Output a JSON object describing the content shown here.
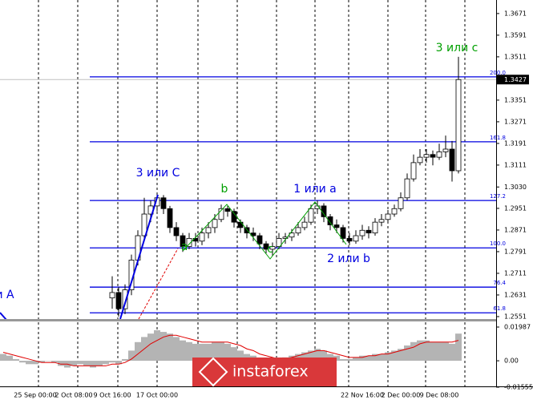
{
  "chart_data": {
    "type": "candlestick",
    "categories": [
      null,
      null,
      null,
      null,
      null,
      "25 Sep 00:00",
      null,
      null,
      null,
      null,
      null,
      "2 Oct 08:00",
      null,
      null,
      null,
      null,
      null,
      "9 Oct 16:00",
      null,
      null,
      null,
      null,
      null,
      null,
      "17 Oct 00:00",
      null,
      null,
      null,
      null,
      null,
      null,
      null,
      null,
      null,
      null,
      null,
      null,
      null,
      null,
      null,
      null,
      null,
      null,
      null,
      null,
      null,
      null,
      null,
      null,
      null,
      null,
      null,
      null,
      null,
      null,
      null,
      "22 Nov 16:00",
      null,
      null,
      null,
      null,
      null,
      "2 Dec 00:00",
      null,
      null,
      null,
      null,
      null,
      "9 Dec 08:00",
      null,
      null,
      null
    ],
    "open": [
      null,
      null,
      null,
      null,
      null,
      null,
      null,
      null,
      null,
      null,
      null,
      null,
      null,
      null,
      null,
      null,
      null,
      1.262,
      1.264,
      1.258,
      1.265,
      1.276,
      1.285,
      1.293,
      1.296,
      1.299,
      1.295,
      1.288,
      1.285,
      1.281,
      1.284,
      1.283,
      1.286,
      1.288,
      1.291,
      1.295,
      1.294,
      1.29,
      1.288,
      1.286,
      1.285,
      1.282,
      1.28,
      1.281,
      1.284,
      1.2845,
      1.286,
      1.288,
      1.29,
      1.295,
      1.296,
      1.292,
      1.289,
      1.288,
      1.284,
      1.283,
      1.285,
      1.287,
      1.286,
      1.29,
      1.291,
      1.293,
      1.295,
      1.299,
      1.306,
      1.312,
      1.314,
      1.315,
      1.314,
      1.316,
      1.317,
      1.309
    ],
    "high": [
      null,
      null,
      null,
      null,
      null,
      null,
      null,
      null,
      null,
      null,
      null,
      null,
      null,
      null,
      null,
      null,
      null,
      1.27,
      1.266,
      1.267,
      1.278,
      1.287,
      1.299,
      1.298,
      1.301,
      1.3,
      1.296,
      1.29,
      1.286,
      1.286,
      1.286,
      1.288,
      1.29,
      1.293,
      1.2965,
      1.296,
      1.295,
      1.291,
      1.289,
      1.288,
      1.286,
      1.283,
      1.2825,
      1.286,
      1.286,
      1.2875,
      1.29,
      1.292,
      1.2965,
      1.298,
      1.297,
      1.293,
      1.291,
      1.289,
      1.286,
      1.287,
      1.289,
      1.2885,
      1.2915,
      1.293,
      1.2945,
      1.2965,
      1.301,
      1.308,
      1.315,
      1.317,
      1.317,
      1.3165,
      1.319,
      1.322,
      1.32,
      1.3511
    ],
    "low": [
      null,
      null,
      null,
      null,
      null,
      null,
      null,
      null,
      null,
      null,
      null,
      null,
      null,
      null,
      null,
      null,
      null,
      1.258,
      1.2551,
      1.256,
      1.263,
      1.274,
      1.283,
      1.29,
      1.294,
      1.293,
      1.286,
      1.283,
      1.279,
      1.28,
      1.281,
      1.2815,
      1.284,
      1.286,
      1.29,
      1.292,
      1.288,
      1.286,
      1.284,
      1.283,
      1.28,
      1.2785,
      1.2775,
      1.28,
      1.282,
      1.283,
      1.285,
      1.287,
      1.289,
      1.293,
      1.29,
      1.287,
      1.286,
      1.2825,
      1.2815,
      1.282,
      1.2835,
      1.284,
      1.285,
      1.2885,
      1.2895,
      1.292,
      1.294,
      1.298,
      1.305,
      1.311,
      1.312,
      1.311,
      1.313,
      1.314,
      1.305,
      1.308
    ],
    "close": [
      null,
      null,
      null,
      null,
      null,
      null,
      null,
      null,
      null,
      null,
      null,
      null,
      null,
      null,
      null,
      null,
      null,
      1.264,
      1.258,
      1.265,
      1.276,
      1.285,
      1.293,
      1.296,
      1.299,
      1.295,
      1.288,
      1.285,
      1.281,
      1.284,
      1.283,
      1.286,
      1.288,
      1.291,
      1.295,
      1.294,
      1.29,
      1.288,
      1.286,
      1.285,
      1.282,
      1.28,
      1.281,
      1.284,
      1.2845,
      1.286,
      1.288,
      1.29,
      1.295,
      1.296,
      1.292,
      1.289,
      1.288,
      1.284,
      1.283,
      1.285,
      1.287,
      1.286,
      1.29,
      1.291,
      1.293,
      1.295,
      1.299,
      1.306,
      1.312,
      1.314,
      1.315,
      1.314,
      1.316,
      1.317,
      1.309,
      1.3427
    ],
    "ylim": [
      1.2545,
      1.3721
    ],
    "yticks": [
      1.3671,
      1.3591,
      1.3511,
      1.3351,
      1.3271,
      1.3191,
      1.3111,
      {
        "value": 1.303,
        "label": "1.3030"
      },
      1.2951,
      1.2871,
      1.2791,
      1.2711,
      1.2631,
      1.2551
    ],
    "bid": 1.3427,
    "levels": [
      {
        "label": "200.0",
        "price": 1.3437
      },
      {
        "label": "161.8",
        "price": 1.3197
      },
      {
        "label": "127.2",
        "price": 1.298
      },
      {
        "label": "100.0",
        "price": 1.2805
      },
      {
        "label": "76.4",
        "price": 1.266
      },
      {
        "label": "61.8",
        "price": 1.2565
      }
    ],
    "annotations": [
      "3 или с",
      "3 или C",
      "b",
      "1 или a",
      "a",
      "c",
      "2 или b",
      "и A"
    ],
    "indicator": {
      "histogram": [
        0.004,
        0.003,
        0.001,
        -0.001,
        -0.002,
        -0.002,
        -0.001,
        0.0,
        -0.001,
        -0.003,
        -0.004,
        -0.003,
        -0.002,
        -0.003,
        -0.004,
        -0.003,
        -0.002,
        -0.001,
        -0.002,
        0.001,
        0.006,
        0.011,
        0.014,
        0.016,
        0.018,
        0.017,
        0.016,
        0.014,
        0.012,
        0.011,
        0.01,
        0.01,
        0.01,
        0.011,
        0.011,
        0.01,
        0.008,
        0.006,
        0.004,
        0.003,
        0.001,
        0.0,
        0.0,
        0.001,
        0.002,
        0.003,
        0.004,
        0.005,
        0.006,
        0.007,
        0.006,
        0.004,
        0.003,
        0.001,
        0.001,
        0.002,
        0.003,
        0.003,
        0.004,
        0.004,
        0.005,
        0.006,
        0.007,
        0.009,
        0.011,
        0.012,
        0.012,
        0.011,
        0.011,
        0.011,
        0.01,
        0.016
      ],
      "histogram_color": "#b4b4b4",
      "signal": [
        0.005,
        0.004,
        0.003,
        0.002,
        0.001,
        0.0,
        -0.001,
        -0.001,
        -0.001,
        -0.002,
        -0.002,
        -0.003,
        -0.003,
        -0.003,
        -0.003,
        -0.003,
        -0.003,
        -0.002,
        -0.002,
        -0.001,
        0.001,
        0.004,
        0.007,
        0.01,
        0.012,
        0.014,
        0.015,
        0.015,
        0.014,
        0.013,
        0.012,
        0.011,
        0.011,
        0.011,
        0.011,
        0.011,
        0.01,
        0.009,
        0.007,
        0.006,
        0.004,
        0.003,
        0.002,
        0.001,
        0.001,
        0.002,
        0.003,
        0.004,
        0.005,
        0.006,
        0.006,
        0.005,
        0.004,
        0.003,
        0.002,
        0.002,
        0.002,
        0.003,
        0.003,
        0.004,
        0.004,
        0.005,
        0.006,
        0.007,
        0.008,
        0.01,
        0.011,
        0.011,
        0.011,
        0.011,
        0.011,
        0.012
      ],
      "signal_color": "#e00000",
      "y2lim": [
        -0.01555,
        0.0227
      ],
      "y2ticks": [
        0.01987,
        {
          "value": 0,
          "label": "0.00"
        },
        -0.01555
      ]
    },
    "watermark": "instaforex"
  }
}
